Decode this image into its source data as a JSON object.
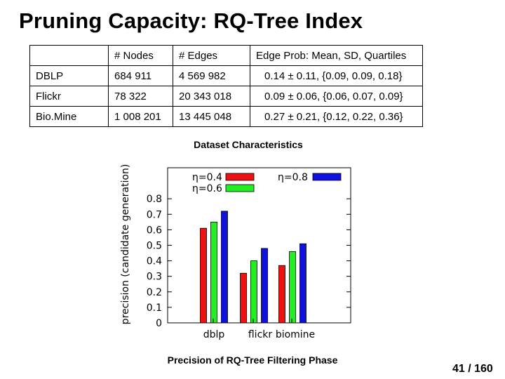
{
  "slide": {
    "title": "Pruning Capacity: RQ-Tree Index",
    "table_caption": "Dataset Characteristics",
    "chart_caption": "Precision of RQ-Tree Filtering Phase",
    "page_number": "41 / 160"
  },
  "table": {
    "headers": [
      "",
      "# Nodes",
      "# Edges",
      "Edge Prob:  Mean,  SD,  Quartiles"
    ],
    "rows": [
      [
        "DBLP",
        "684 911",
        "4 569 982",
        "0.14 ± 0.11,  {0.09, 0.09, 0.18}"
      ],
      [
        "Flickr",
        "78 322",
        "20 343 018",
        "0.09 ± 0.06,  {0.06, 0.07, 0.09}"
      ],
      [
        "Bio.Mine",
        "1 008 201",
        "13 445 048",
        "0.27 ± 0.21,  {0.12, 0.22, 0.36}"
      ]
    ]
  },
  "chart_data": {
    "type": "bar",
    "categories": [
      "dblp",
      "flickr",
      "biomine"
    ],
    "series": [
      {
        "name": "η=0.4",
        "color": "#ee1111",
        "values": [
          0.61,
          0.32,
          0.37
        ]
      },
      {
        "name": "η=0.6",
        "color": "#22ee22",
        "values": [
          0.65,
          0.4,
          0.46
        ]
      },
      {
        "name": "η=0.8",
        "color": "#1111dd",
        "values": [
          0.72,
          0.48,
          0.51
        ]
      }
    ],
    "ylabel": "precision (candidate generation)",
    "yticks": [
      "0",
      "0.1",
      "0.2",
      "0.3",
      "0.4",
      "0.5",
      "0.6",
      "0.7",
      "0.8"
    ],
    "ylim": [
      0,
      1.0
    ],
    "legend_position": "top",
    "grid": false
  }
}
